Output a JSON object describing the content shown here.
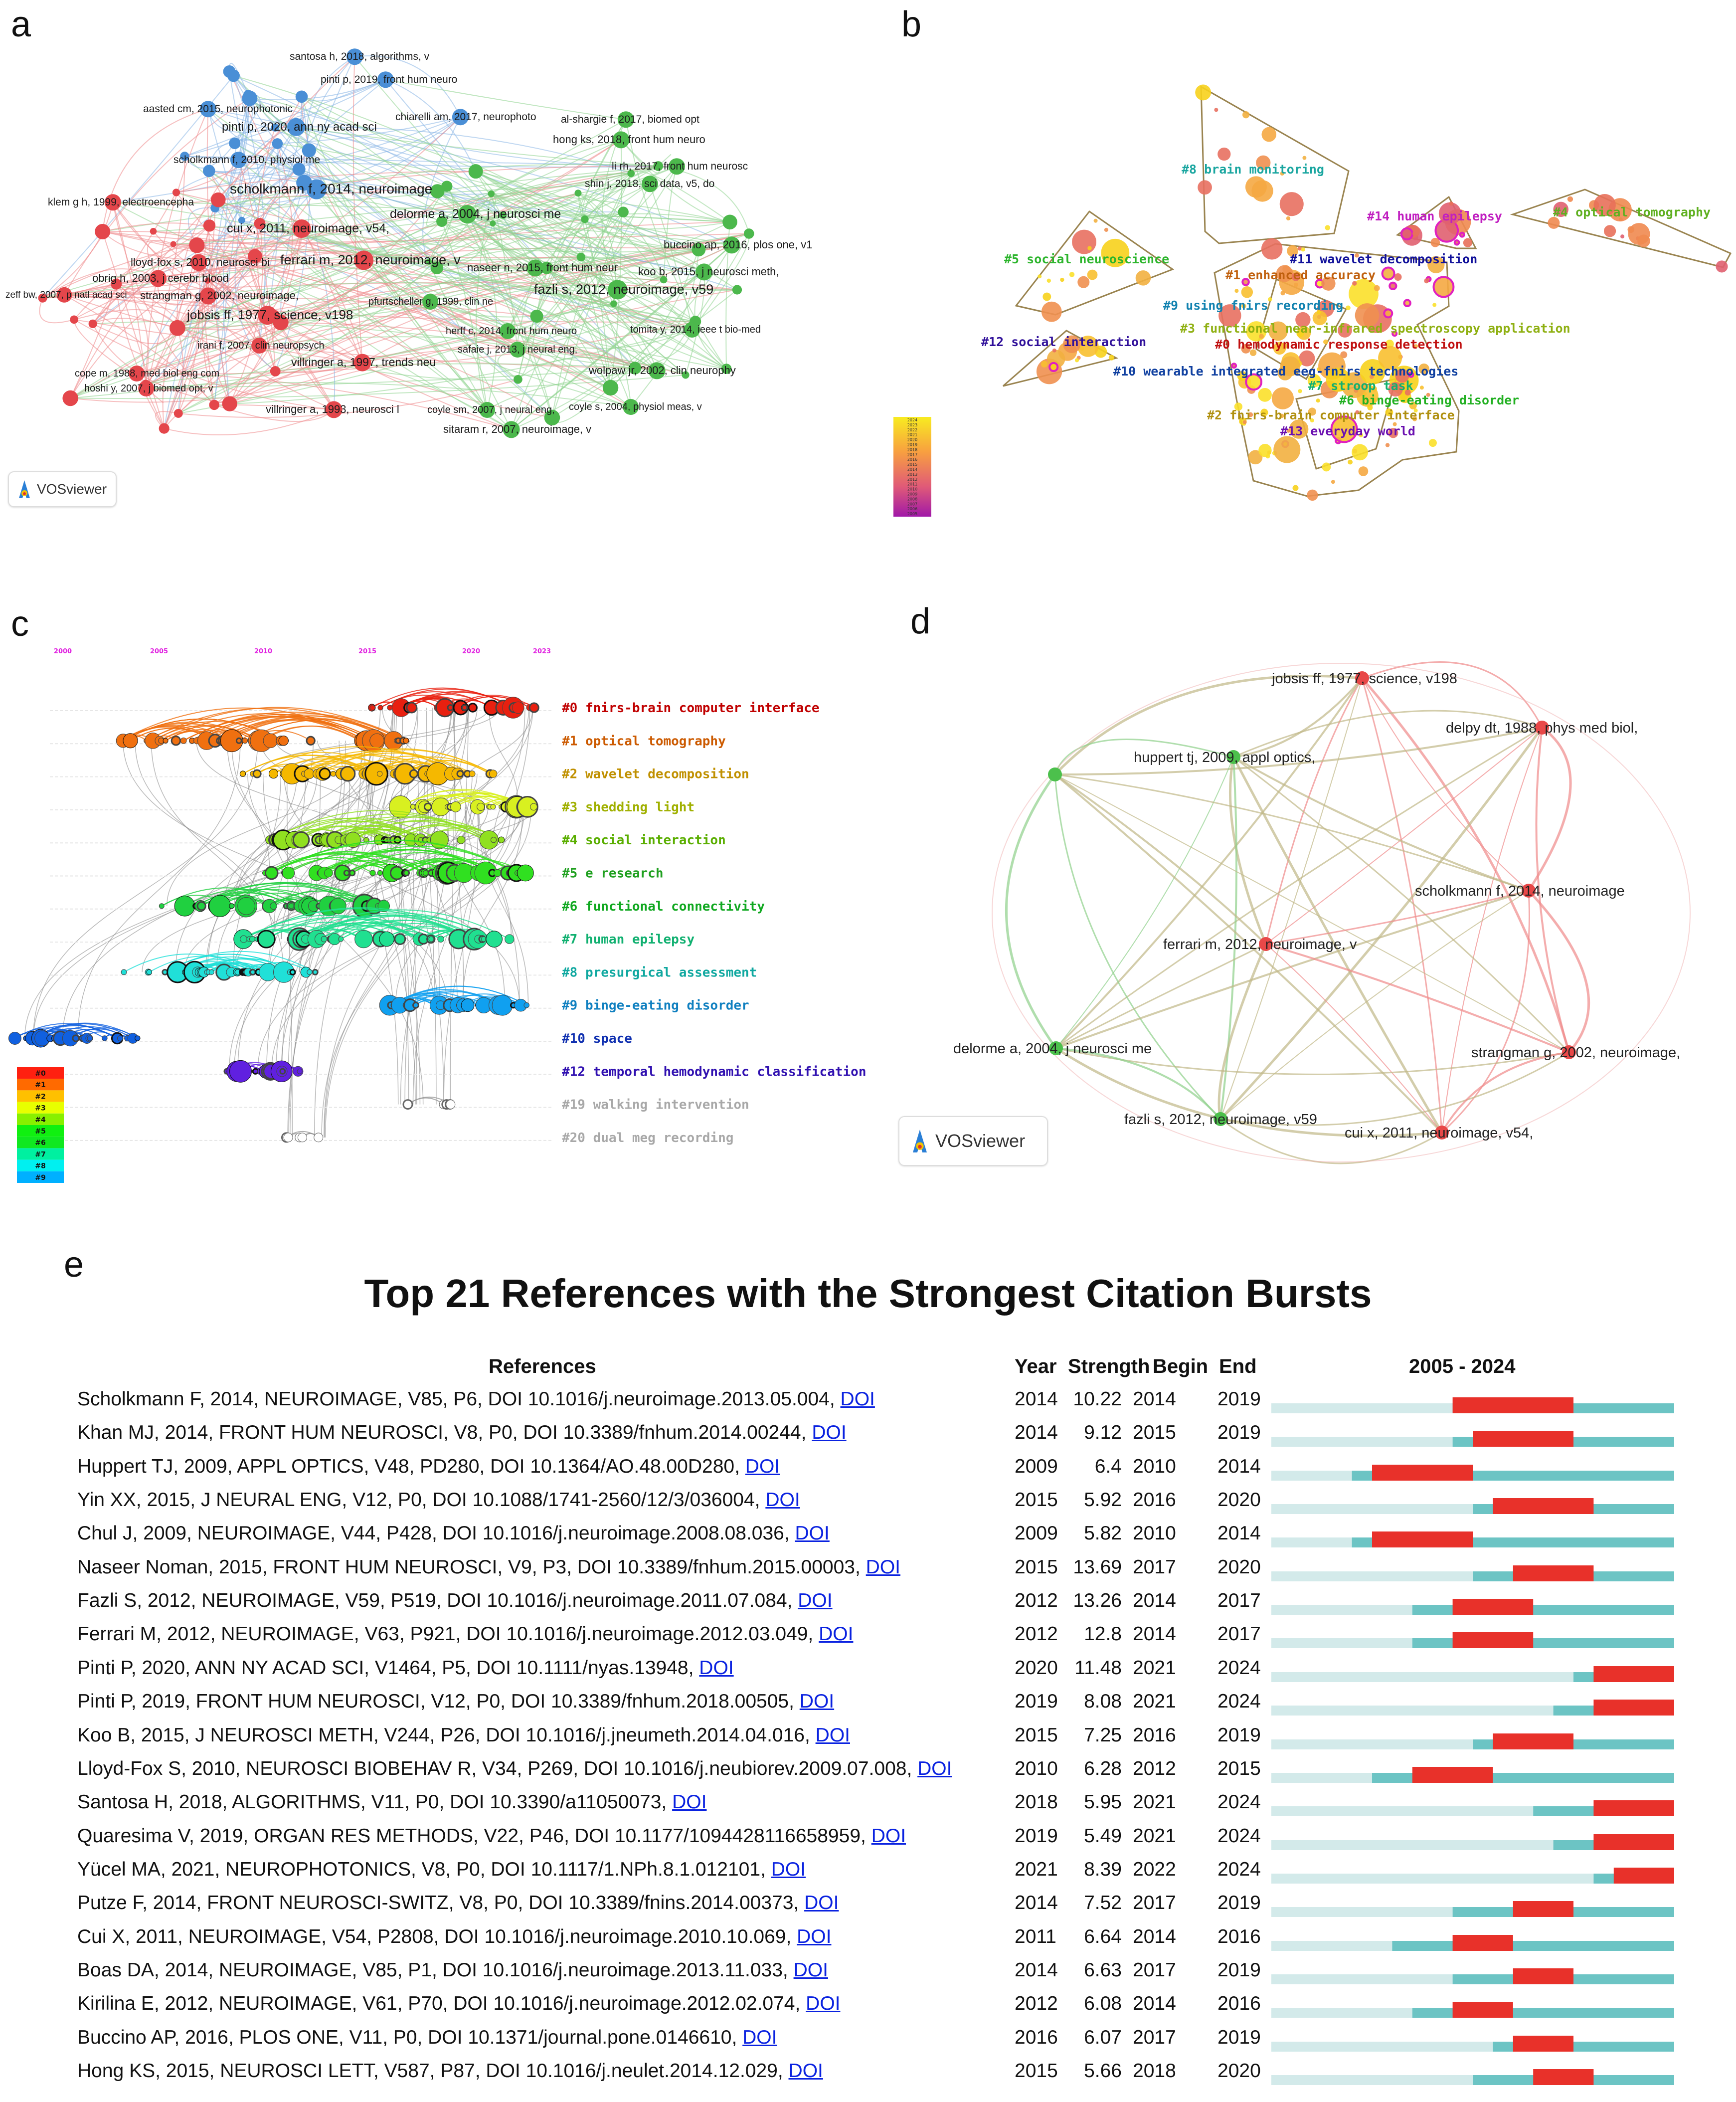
{
  "panels": {
    "a": "a",
    "b": "b",
    "c": "c",
    "d": "d",
    "e": "e"
  },
  "colors": {
    "red_cluster": "#e4464b",
    "green_cluster": "#4cb84c",
    "blue_cluster": "#4a8fd6",
    "burst": "#e8312a",
    "teal": "#6cc4c4",
    "light": "#d3eaea",
    "doi_link": "#0a22e0"
  },
  "panel_a": {
    "badge": "VOSviewer",
    "nodes": [
      {
        "label": "santosa h, 2018, algorithms, v",
        "cluster": "blue"
      },
      {
        "label": "pinti p, 2019, front hum neuro",
        "cluster": "blue"
      },
      {
        "label": "aasted cm, 2015, neurophotonic",
        "cluster": "blue"
      },
      {
        "label": "pinti p, 2020, ann ny acad sci",
        "cluster": "blue"
      },
      {
        "label": "chiarelli am, 2017, neurophoto",
        "cluster": "blue"
      },
      {
        "label": "al-shargie f, 2017, biomed opt",
        "cluster": "green"
      },
      {
        "label": "hong ks, 2018, front hum neuro",
        "cluster": "green"
      },
      {
        "label": "scholkmann f, 2010, physiol me",
        "cluster": "blue"
      },
      {
        "label": "li rh, 2017, front hum neurosc",
        "cluster": "green"
      },
      {
        "label": "shin j, 2018, sci data, v5, do",
        "cluster": "green"
      },
      {
        "label": "scholkmann f, 2014, neuroimage",
        "cluster": "blue"
      },
      {
        "label": "klem g h, 1999, electroencepha",
        "cluster": "red"
      },
      {
        "label": "delorme a, 2004, j neurosci me",
        "cluster": "green"
      },
      {
        "label": "cui x, 2011, neuroimage, v54,",
        "cluster": "red"
      },
      {
        "label": "buccino ap, 2016, plos one, v1",
        "cluster": "green"
      },
      {
        "label": "ferrari m, 2012, neuroimage, v",
        "cluster": "red"
      },
      {
        "label": "lloyd-fox s, 2010, neurosci bi",
        "cluster": "red"
      },
      {
        "label": "naseer n, 2015, front hum neur",
        "cluster": "green"
      },
      {
        "label": "koo b, 2015, j neurosci meth,",
        "cluster": "green"
      },
      {
        "label": "obrig h, 2003, j cerebr blood",
        "cluster": "red"
      },
      {
        "label": "fazli s, 2012, neuroimage, v59",
        "cluster": "green"
      },
      {
        "label": "zeff bw, 2007, p natl acad sci",
        "cluster": "red"
      },
      {
        "label": "strangman g, 2002, neuroimage,",
        "cluster": "red"
      },
      {
        "label": "pfurtscheller g, 1999, clin ne",
        "cluster": "green"
      },
      {
        "label": "jobsis ff, 1977, science, v198",
        "cluster": "red"
      },
      {
        "label": "herff c, 2014, front hum neuro",
        "cluster": "green"
      },
      {
        "label": "tomita y, 2014, ieee t bio-med",
        "cluster": "green"
      },
      {
        "label": "irani f, 2007, clin neuropsych",
        "cluster": "red"
      },
      {
        "label": "safaie j, 2013, j neural eng,",
        "cluster": "green"
      },
      {
        "label": "villringer a, 1997, trends neu",
        "cluster": "red"
      },
      {
        "label": "wolpaw jr, 2002, clin neurophy",
        "cluster": "green"
      },
      {
        "label": "cope m, 1988, med biol eng com",
        "cluster": "red"
      },
      {
        "label": "hoshi y, 2007, j biomed opt, v",
        "cluster": "red"
      },
      {
        "label": "villringer a, 1993, neurosci l",
        "cluster": "red"
      },
      {
        "label": "coyle sm, 2007, j neural eng,",
        "cluster": "green"
      },
      {
        "label": "coyle s, 2004, physiol meas, v",
        "cluster": "green"
      },
      {
        "label": "sitaram r, 2007, neuroimage, v",
        "cluster": "green"
      }
    ]
  },
  "panel_b": {
    "clusters": [
      {
        "label": "#8 brain monitoring",
        "color": "#1aa6a0"
      },
      {
        "label": "#14 human epilepsy",
        "color": "#c01fc0"
      },
      {
        "label": "#4 optical tomography",
        "color": "#5fb020"
      },
      {
        "label": "#5 social neuroscience",
        "color": "#2cb52c"
      },
      {
        "label": "#11 wavelet decomposition",
        "color": "#10109a"
      },
      {
        "label": "#1 enhanced accuracy",
        "color": "#c0600e"
      },
      {
        "label": "#9 using fnirs recording",
        "color": "#1282b0"
      },
      {
        "label": "#3 functional near-infrared spectroscopy application",
        "color": "#8fb012"
      },
      {
        "label": "#12 social interaction",
        "color": "#30109a"
      },
      {
        "label": "#0 hemodynamic response detection",
        "color": "#c01010"
      },
      {
        "label": "#10 wearable integrated eeg-fnirs technologies",
        "color": "#1040a0"
      },
      {
        "label": "#7 stroop task",
        "color": "#10b070"
      },
      {
        "label": "#6 binge-eating disorder",
        "color": "#22b022"
      },
      {
        "label": "#2 fnirs-brain computer interface",
        "color": "#b09010"
      },
      {
        "label": "#13 everyday world",
        "color": "#6a10b0"
      }
    ],
    "colorbar_years": [
      "2024",
      "2023",
      "2022",
      "2021",
      "2020",
      "2019",
      "2018",
      "2017",
      "2016",
      "2015",
      "2014",
      "2013",
      "2012",
      "2011",
      "2010",
      "2009",
      "2008",
      "2007",
      "2006",
      "2005"
    ]
  },
  "panel_c": {
    "years": [
      "2000",
      "2005",
      "2010",
      "2015",
      "2020",
      "2023"
    ],
    "clusters": [
      {
        "label": "#0 fnirs-brain computer interface",
        "color": "#c00000",
        "node": "#e82010",
        "span": [
          2015,
          2023
        ]
      },
      {
        "label": "#1 optical tomography",
        "color": "#cc5a00",
        "node": "#f07010",
        "span": [
          2003,
          2017
        ]
      },
      {
        "label": "#2 wavelet decomposition",
        "color": "#c09000",
        "node": "#f5b800",
        "span": [
          2009,
          2022
        ]
      },
      {
        "label": "#3 shedding light",
        "color": "#a0b000",
        "node": "#d8f020",
        "span": [
          2016,
          2023
        ]
      },
      {
        "label": "#4 social interaction",
        "color": "#5aae00",
        "node": "#90e020",
        "span": [
          2010,
          2022
        ]
      },
      {
        "label": "#5 e research",
        "color": "#20a020",
        "node": "#30e020",
        "span": [
          2010,
          2023
        ]
      },
      {
        "label": "#6 functional connectivity",
        "color": "#10a820",
        "node": "#20d040",
        "span": [
          2005,
          2016
        ]
      },
      {
        "label": "#7 human epilepsy",
        "color": "#10b070",
        "node": "#20e090",
        "span": [
          2008,
          2022
        ]
      },
      {
        "label": "#8 presurgical assessment",
        "color": "#10a8a0",
        "node": "#20e0d8",
        "span": [
          2003,
          2013
        ]
      },
      {
        "label": "#9 binge-eating disorder",
        "color": "#1080c0",
        "node": "#10a0f0",
        "span": [
          2016,
          2023
        ]
      },
      {
        "label": "#10 space",
        "color": "#1030b0",
        "node": "#1060e0",
        "span": [
          1998,
          2004
        ]
      },
      {
        "label": "#12 temporal hemodynamic classification",
        "color": "#3010b0",
        "node": "#6020e0",
        "span": [
          2008,
          2012
        ]
      },
      {
        "label": "#19 walking intervention",
        "color": "#a8a8a8",
        "node": "#ffffff",
        "span": [
          2016,
          2019
        ]
      },
      {
        "label": "#20 dual meg recording",
        "color": "#a8a8a8",
        "node": "#ffffff",
        "span": [
          2011,
          2013
        ]
      }
    ],
    "legend": [
      "#0",
      "#1",
      "#2",
      "#3",
      "#4",
      "#5",
      "#6",
      "#7",
      "#8",
      "#9"
    ]
  },
  "panel_d": {
    "badge": "VOSviewer",
    "nodes": [
      {
        "label": "jobsis ff, 1977, science, v198",
        "cluster": "red"
      },
      {
        "label": "delpy dt, 1988, phys med biol,",
        "cluster": "red"
      },
      {
        "label": "huppert tj, 2009, appl optics,",
        "cluster": "green"
      },
      {
        "label": "",
        "cluster": "green"
      },
      {
        "label": "scholkmann f, 2014, neuroimage",
        "cluster": "red"
      },
      {
        "label": "ferrari m, 2012, neuroimage, v",
        "cluster": "red"
      },
      {
        "label": "delorme a, 2004, j neurosci me",
        "cluster": "green"
      },
      {
        "label": "strangman g, 2002, neuroimage,",
        "cluster": "red"
      },
      {
        "label": "fazli s, 2012, neuroimage, v59",
        "cluster": "green"
      },
      {
        "label": "cui x, 2011, neuroimage, v54,",
        "cluster": "red"
      }
    ]
  },
  "panel_e": {
    "title": "Top 21 References with the Strongest Citation Bursts",
    "headers": {
      "references": "References",
      "year": "Year",
      "strength": "Strength",
      "begin": "Begin",
      "end": "End",
      "range": "2005 - 2024"
    },
    "range_years": [
      2005,
      2024
    ],
    "rows": [
      {
        "ref": "Scholkmann F, 2014, NEUROIMAGE, V85, P6, DOI 10.1016/j.neuroimage.2013.05.004, ",
        "doi": "DOI",
        "year": "2014",
        "strength": "10.22",
        "begin": "2014",
        "end": "2019"
      },
      {
        "ref": "Khan MJ, 2014, FRONT HUM NEUROSCI, V8, P0, DOI 10.3389/fnhum.2014.00244, ",
        "doi": "DOI",
        "year": "2014",
        "strength": "9.12",
        "begin": "2015",
        "end": "2019"
      },
      {
        "ref": "Huppert TJ, 2009, APPL OPTICS, V48, PD280, DOI 10.1364/AO.48.00D280, ",
        "doi": "DOI",
        "year": "2009",
        "strength": "6.4",
        "begin": "2010",
        "end": "2014"
      },
      {
        "ref": "Yin XX, 2015, J NEURAL ENG, V12, P0, DOI 10.1088/1741-2560/12/3/036004, ",
        "doi": "DOI",
        "year": "2015",
        "strength": "5.92",
        "begin": "2016",
        "end": "2020"
      },
      {
        "ref": "Chul J, 2009, NEUROIMAGE, V44, P428, DOI 10.1016/j.neuroimage.2008.08.036, ",
        "doi": "DOI",
        "year": "2009",
        "strength": "5.82",
        "begin": "2010",
        "end": "2014"
      },
      {
        "ref": "Naseer Noman, 2015, FRONT HUM NEUROSCI, V9, P3, DOI 10.3389/fnhum.2015.00003, ",
        "doi": "DOI",
        "year": "2015",
        "strength": "13.69",
        "begin": "2017",
        "end": "2020"
      },
      {
        "ref": "Fazli S, 2012, NEUROIMAGE, V59, P519, DOI 10.1016/j.neuroimage.2011.07.084, ",
        "doi": "DOI",
        "year": "2012",
        "strength": "13.26",
        "begin": "2014",
        "end": "2017"
      },
      {
        "ref": "Ferrari M, 2012, NEUROIMAGE, V63, P921, DOI 10.1016/j.neuroimage.2012.03.049, ",
        "doi": "DOI",
        "year": "2012",
        "strength": "12.8",
        "begin": "2014",
        "end": "2017"
      },
      {
        "ref": "Pinti P, 2020, ANN NY ACAD SCI, V1464, P5, DOI 10.1111/nyas.13948, ",
        "doi": "DOI",
        "year": "2020",
        "strength": "11.48",
        "begin": "2021",
        "end": "2024"
      },
      {
        "ref": "Pinti P, 2019, FRONT HUM NEUROSCI, V12, P0, DOI 10.3389/fnhum.2018.00505, ",
        "doi": "DOI",
        "year": "2019",
        "strength": "8.08",
        "begin": "2021",
        "end": "2024"
      },
      {
        "ref": "Koo B, 2015, J NEUROSCI METH, V244, P26, DOI 10.1016/j.jneumeth.2014.04.016, ",
        "doi": "DOI",
        "year": "2015",
        "strength": "7.25",
        "begin": "2016",
        "end": "2019"
      },
      {
        "ref": "Lloyd-Fox S, 2010, NEUROSCI BIOBEHAV R, V34, P269, DOI 10.1016/j.neubiorev.2009.07.008, ",
        "doi": "DOI",
        "year": "2010",
        "strength": "6.28",
        "begin": "2012",
        "end": "2015"
      },
      {
        "ref": "Santosa H, 2018, ALGORITHMS, V11, P0, DOI 10.3390/a11050073, ",
        "doi": "DOI",
        "year": "2018",
        "strength": "5.95",
        "begin": "2021",
        "end": "2024"
      },
      {
        "ref": "Quaresima V, 2019, ORGAN RES METHODS, V22, P46, DOI 10.1177/1094428116658959, ",
        "doi": "DOI",
        "year": "2019",
        "strength": "5.49",
        "begin": "2021",
        "end": "2024"
      },
      {
        "ref": "Yücel MA, 2021, NEUROPHOTONICS, V8, P0, DOI 10.1117/1.NPh.8.1.012101, ",
        "doi": "DOI",
        "year": "2021",
        "strength": "8.39",
        "begin": "2022",
        "end": "2024"
      },
      {
        "ref": "Putze F, 2014, FRONT NEUROSCI-SWITZ, V8, P0, DOI 10.3389/fnins.2014.00373, ",
        "doi": "DOI",
        "year": "2014",
        "strength": "7.52",
        "begin": "2017",
        "end": "2019"
      },
      {
        "ref": "Cui X, 2011, NEUROIMAGE, V54, P2808, DOI 10.1016/j.neuroimage.2010.10.069, ",
        "doi": "DOI",
        "year": "2011",
        "strength": "6.64",
        "begin": "2014",
        "end": "2016"
      },
      {
        "ref": "Boas DA, 2014, NEUROIMAGE, V85, P1, DOI 10.1016/j.neuroimage.2013.11.033, ",
        "doi": "DOI",
        "year": "2014",
        "strength": "6.63",
        "begin": "2017",
        "end": "2019"
      },
      {
        "ref": "Kirilina E, 2012, NEUROIMAGE, V61, P70, DOI 10.1016/j.neuroimage.2012.02.074, ",
        "doi": "DOI",
        "year": "2012",
        "strength": "6.08",
        "begin": "2014",
        "end": "2016"
      },
      {
        "ref": "Buccino AP, 2016, PLOS ONE, V11, P0, DOI 10.1371/journal.pone.0146610, ",
        "doi": "DOI",
        "year": "2016",
        "strength": "6.07",
        "begin": "2017",
        "end": "2019"
      },
      {
        "ref": "Hong KS, 2015, NEUROSCI LETT, V587, P87, DOI 10.1016/j.neulet.2014.12.029, ",
        "doi": "DOI",
        "year": "2015",
        "strength": "5.66",
        "begin": "2018",
        "end": "2020"
      }
    ]
  }
}
